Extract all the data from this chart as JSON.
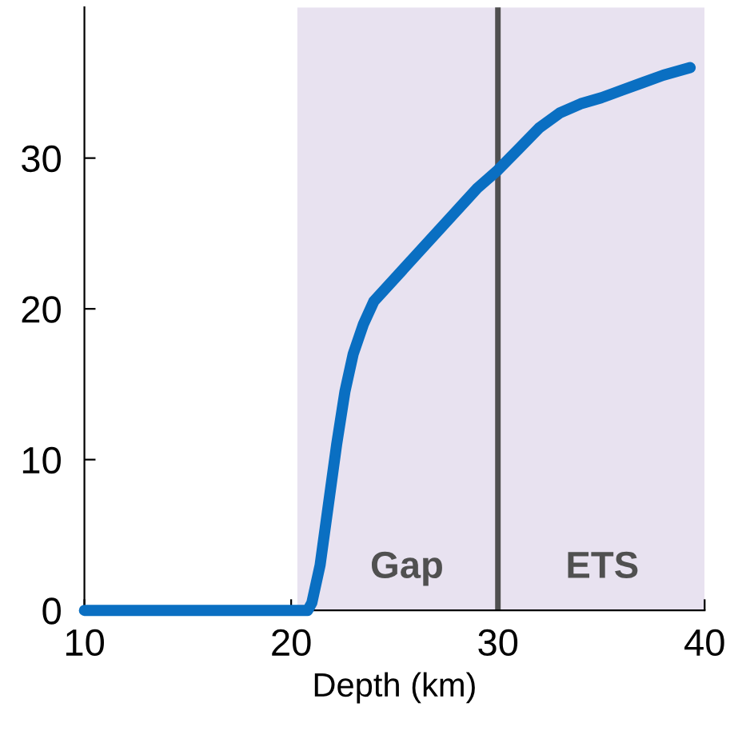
{
  "chart_data": {
    "type": "line",
    "xlabel": "Depth (km)",
    "x": [
      10,
      15,
      20,
      20.8,
      21.0,
      21.4,
      21.8,
      22.2,
      22.6,
      23.0,
      23.5,
      24.0,
      25.0,
      26.0,
      27.0,
      28.0,
      29.0,
      30.0,
      31.0,
      32.0,
      33.0,
      34.0,
      35.0,
      36.0,
      37.0,
      38.0,
      39.3
    ],
    "series": [
      {
        "color": "#0a6fc2",
        "values": [
          0,
          0,
          0,
          0,
          0.5,
          3,
          7,
          11,
          14.5,
          17,
          19,
          20.5,
          22,
          23.5,
          25,
          26.5,
          28,
          29.2,
          30.6,
          32,
          33,
          33.6,
          34,
          34.5,
          35,
          35.5,
          36
        ]
      }
    ],
    "xlim": [
      10,
      40
    ],
    "ylim": [
      0,
      40
    ],
    "xticks": [
      10,
      20,
      30,
      40
    ],
    "yticks": [
      0,
      10,
      20,
      30
    ],
    "grid": false,
    "marker": "none",
    "line_style": "solid",
    "bands": [
      {
        "axis": "x",
        "from": 20.3,
        "to": 40,
        "color": "#e8e2f0"
      }
    ],
    "ref_lines": [
      {
        "axis": "x",
        "value": 30,
        "color": "#505050",
        "line_style": "solid"
      }
    ],
    "annotations": [
      "Gap",
      "ETS"
    ]
  }
}
